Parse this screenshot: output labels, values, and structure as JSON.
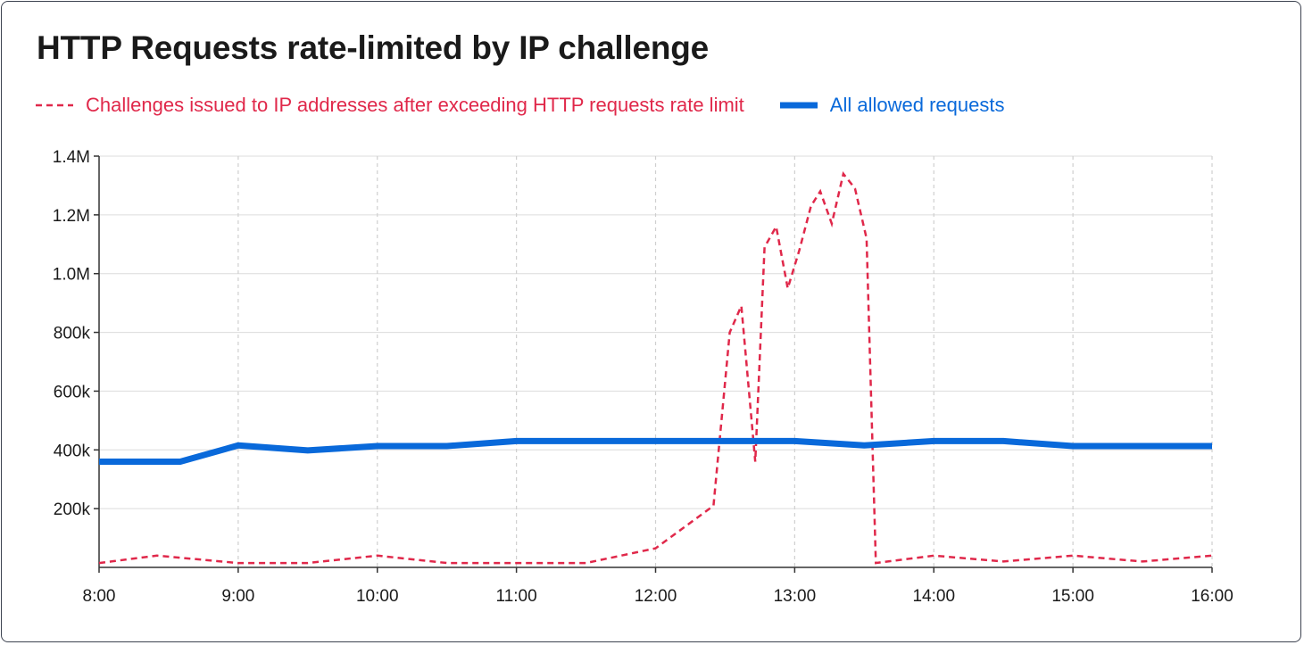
{
  "chart_data": {
    "type": "line",
    "title": "HTTP Requests rate-limited by IP challenge",
    "xlabel": "",
    "ylabel": "",
    "x_ticks": [
      "8:00",
      "9:00",
      "10:00",
      "11:00",
      "12:00",
      "13:00",
      "14:00",
      "15:00",
      "16:00"
    ],
    "y_ticks": [
      "200k",
      "400k",
      "600k",
      "800k",
      "1.0M",
      "1.2M",
      "1.4M"
    ],
    "y_tick_values": [
      200000,
      400000,
      600000,
      800000,
      1000000,
      1200000,
      1400000
    ],
    "xlim": [
      "8:00",
      "16:00"
    ],
    "ylim": [
      0,
      1400000
    ],
    "grid": {
      "x": "dashed",
      "y": "solid"
    },
    "legend": "top-left",
    "series": [
      {
        "name": "Challenges issued to IP addresses after exceeding HTTP requests rate limit",
        "color": "#e0284a",
        "style": "dashed",
        "points": [
          [
            "8:00",
            15000
          ],
          [
            "8:25",
            40000
          ],
          [
            "9:00",
            15000
          ],
          [
            "9:30",
            15000
          ],
          [
            "10:00",
            40000
          ],
          [
            "10:30",
            15000
          ],
          [
            "11:00",
            15000
          ],
          [
            "11:30",
            15000
          ],
          [
            "12:00",
            65000
          ],
          [
            "12:25",
            210000
          ],
          [
            "12:32",
            800000
          ],
          [
            "12:37",
            890000
          ],
          [
            "12:43",
            360000
          ],
          [
            "12:47",
            1090000
          ],
          [
            "12:52",
            1160000
          ],
          [
            "12:57",
            950000
          ],
          [
            "13:02",
            1080000
          ],
          [
            "13:07",
            1230000
          ],
          [
            "13:11",
            1280000
          ],
          [
            "13:16",
            1170000
          ],
          [
            "13:21",
            1340000
          ],
          [
            "13:26",
            1290000
          ],
          [
            "13:31",
            1120000
          ],
          [
            "13:35",
            15000
          ],
          [
            "14:00",
            40000
          ],
          [
            "14:30",
            20000
          ],
          [
            "15:00",
            40000
          ],
          [
            "15:30",
            20000
          ],
          [
            "16:00",
            40000
          ]
        ]
      },
      {
        "name": "All allowed requests",
        "color": "#0969da",
        "style": "solid",
        "points": [
          [
            "8:00",
            360000
          ],
          [
            "8:35",
            360000
          ],
          [
            "9:00",
            415000
          ],
          [
            "9:30",
            398000
          ],
          [
            "10:00",
            413000
          ],
          [
            "10:30",
            413000
          ],
          [
            "11:00",
            430000
          ],
          [
            "11:30",
            430000
          ],
          [
            "12:00",
            430000
          ],
          [
            "12:30",
            430000
          ],
          [
            "13:00",
            430000
          ],
          [
            "13:30",
            415000
          ],
          [
            "14:00",
            430000
          ],
          [
            "14:30",
            430000
          ],
          [
            "15:00",
            413000
          ],
          [
            "15:30",
            413000
          ],
          [
            "16:00",
            413000
          ]
        ]
      }
    ]
  }
}
